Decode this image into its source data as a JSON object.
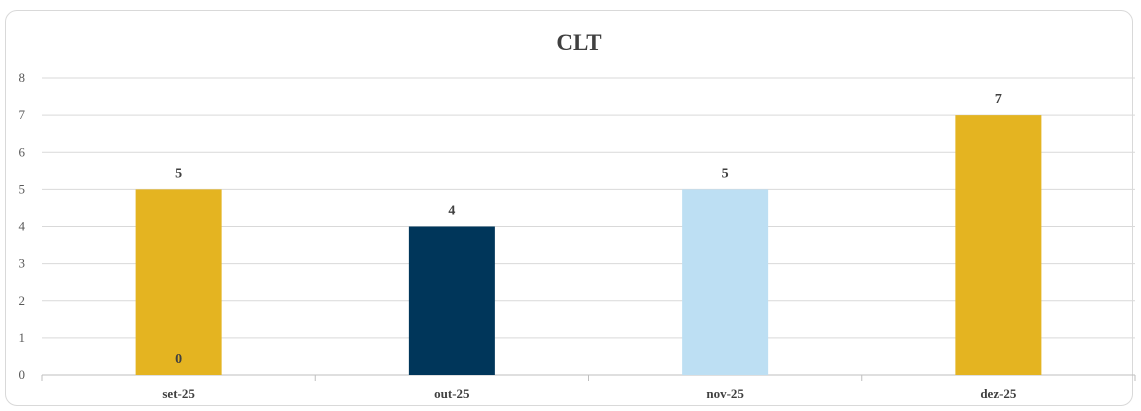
{
  "chart_data": {
    "type": "bar",
    "title": "CLT",
    "xlabel": "",
    "ylabel": "",
    "categories": [
      "set-25",
      "out-25",
      "nov-25",
      "dez-25"
    ],
    "values": [
      5,
      4,
      5,
      7
    ],
    "data_labels": [
      "5",
      "4",
      "5",
      "7"
    ],
    "extra_label": {
      "category": "set-25",
      "value": 0,
      "text": "0"
    },
    "bar_colors": [
      "#E4B421",
      "#00365A",
      "#BDDFF3",
      "#E4B421"
    ],
    "ylim": [
      0,
      8
    ],
    "yticks": [
      0,
      1,
      2,
      3,
      4,
      5,
      6,
      7,
      8
    ],
    "grid": true,
    "legend": "none"
  }
}
